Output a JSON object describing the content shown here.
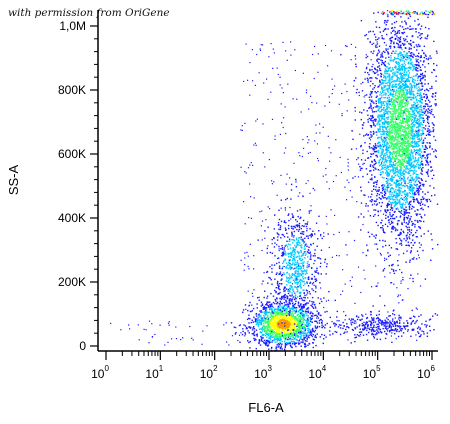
{
  "watermark": "with permission from OriGene",
  "chart_data": {
    "type": "scatter",
    "xlabel": "FL6-A",
    "ylabel": "SS-A",
    "x_scale": "log",
    "xlim": [
      1,
      1000000
    ],
    "ylim": [
      0,
      1050000
    ],
    "x_ticks": [
      {
        "base": "10",
        "exp": "0",
        "value": 1
      },
      {
        "base": "10",
        "exp": "1",
        "value": 10
      },
      {
        "base": "10",
        "exp": "2",
        "value": 100
      },
      {
        "base": "10",
        "exp": "3",
        "value": 1000
      },
      {
        "base": "10",
        "exp": "4",
        "value": 10000
      },
      {
        "base": "10",
        "exp": "5",
        "value": 100000
      },
      {
        "base": "10",
        "exp": "6",
        "value": 1000000
      }
    ],
    "y_ticks": [
      {
        "label": "0",
        "value": 0
      },
      {
        "label": "200K",
        "value": 200000
      },
      {
        "label": "400K",
        "value": 400000
      },
      {
        "label": "600K",
        "value": 600000
      },
      {
        "label": "800K",
        "value": 800000
      },
      {
        "label": "1,0M",
        "value": 1000000
      }
    ],
    "density_colormap": [
      "#1a1aff",
      "#00c8ff",
      "#33ff66",
      "#ffff00",
      "#ff9900",
      "#ff0000"
    ],
    "grid": false,
    "series": [
      {
        "x": 1800,
        "y": 70000,
        "peak_density": "high"
      },
      {
        "x": 3000,
        "y": 250000,
        "peak_density": "low"
      },
      {
        "x": 250000,
        "y": 680000,
        "peak_density": "medium"
      },
      {
        "x": 120000,
        "y": 65000,
        "peak_density": "low"
      }
    ]
  }
}
